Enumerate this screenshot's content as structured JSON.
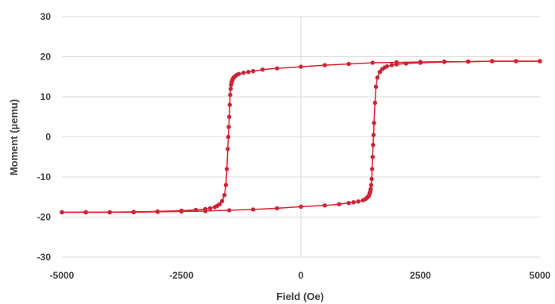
{
  "chart_data": {
    "type": "scatter",
    "title": "",
    "xlabel": "Field (Oe)",
    "ylabel": "Moment (µemu)",
    "xlim": [
      -5000,
      5000
    ],
    "ylim": [
      -30,
      30
    ],
    "x_ticks": [
      -5000,
      -2500,
      0,
      2500,
      5000
    ],
    "y_ticks": [
      30,
      20,
      10,
      0,
      -10,
      -20,
      -30
    ],
    "x_tick_labels": [
      "-5000",
      "-2500",
      "0",
      "2500",
      "5000"
    ],
    "y_tick_labels": [
      "30",
      "20",
      "10",
      "0",
      "-10",
      "-20",
      "-30"
    ],
    "grid": "horizontal",
    "legend": "none",
    "color": "#e0202f",
    "series": [
      {
        "x": [
          -5000,
          -4500,
          -4000,
          -3500,
          -3000,
          -2500,
          -2200,
          -2000,
          -1900,
          -1800,
          -1750,
          -1700,
          -1650,
          -1600,
          -1570,
          -1550,
          -1530,
          -1520,
          -1510,
          -1500,
          -1490,
          -1480,
          -1470,
          -1460,
          -1450,
          -1440,
          -1430,
          -1420,
          -1400,
          -1380,
          -1350,
          -1300,
          -1200,
          -1100,
          -1000,
          -800,
          -500,
          0,
          500,
          1000,
          1500,
          2000,
          2500,
          3000,
          3500,
          4000,
          4500,
          5000
        ],
        "y": [
          -18.8,
          -18.8,
          -18.8,
          -18.7,
          -18.6,
          -18.4,
          -18.2,
          -18.0,
          -17.8,
          -17.5,
          -17.2,
          -16.8,
          -16.0,
          -14.5,
          -12.0,
          -8.0,
          -3.0,
          0.0,
          2.5,
          5.0,
          8.0,
          10.5,
          12.0,
          13.0,
          13.6,
          14.0,
          14.3,
          14.6,
          14.9,
          15.1,
          15.4,
          15.7,
          16.0,
          16.2,
          16.4,
          16.8,
          17.1,
          17.5,
          17.9,
          18.2,
          18.5,
          18.6,
          18.7,
          18.8,
          18.8,
          18.9,
          18.9,
          18.9
        ]
      },
      {
        "x": [
          5000,
          4500,
          4000,
          3500,
          3000,
          2500,
          2200,
          2000,
          1900,
          1800,
          1750,
          1700,
          1650,
          1600,
          1570,
          1550,
          1530,
          1520,
          1510,
          1500,
          1490,
          1480,
          1470,
          1460,
          1450,
          1440,
          1430,
          1420,
          1400,
          1380,
          1350,
          1300,
          1200,
          1100,
          1000,
          800,
          500,
          0,
          -500,
          -1000,
          -1500,
          -2000,
          -2500,
          -3000,
          -3500,
          -4000,
          -4500,
          -5000
        ],
        "y": [
          18.9,
          18.9,
          18.9,
          18.8,
          18.7,
          18.5,
          18.3,
          18.1,
          17.9,
          17.6,
          17.3,
          16.9,
          16.2,
          14.8,
          12.5,
          8.5,
          3.5,
          0.5,
          -2.0,
          -5.0,
          -8.0,
          -10.5,
          -12.0,
          -13.0,
          -13.6,
          -14.0,
          -14.4,
          -14.7,
          -15.0,
          -15.2,
          -15.5,
          -15.8,
          -16.1,
          -16.3,
          -16.5,
          -16.8,
          -17.1,
          -17.4,
          -17.8,
          -18.1,
          -18.3,
          -18.5,
          -18.6,
          -18.7,
          -18.8,
          -18.8,
          -18.8,
          -18.8
        ]
      }
    ]
  }
}
